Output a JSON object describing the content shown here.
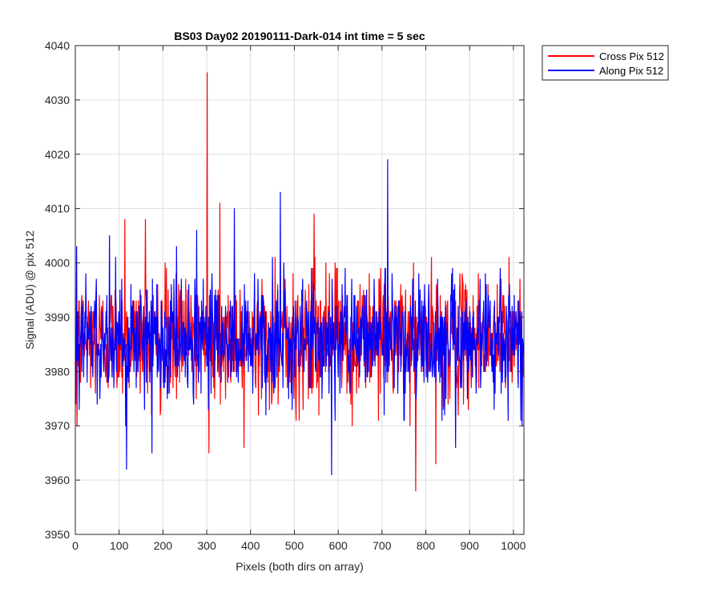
{
  "chart_data": {
    "type": "line",
    "title": "BS03 Day02 20190111-Dark-014 int time = 5 sec",
    "xlabel": "Pixels (both dirs on array)",
    "ylabel": "Signal (ADU) @ pix 512",
    "xlim": [
      0,
      1024
    ],
    "ylim": [
      3950,
      4040
    ],
    "xticks": [
      0,
      100,
      200,
      300,
      400,
      500,
      600,
      700,
      800,
      900,
      1000
    ],
    "yticks": [
      3950,
      3960,
      3970,
      3980,
      3990,
      4000,
      4010,
      4020,
      4030,
      4040
    ],
    "grid": true,
    "legend_position": "outside top-right",
    "n_points": 1024,
    "baseline": 3986,
    "typical_range": [
      3970,
      4003
    ],
    "series": [
      {
        "name": "Cross Pix 512",
        "color": "#ff0000",
        "notable_points": [
          [
            0,
            3981
          ],
          [
            4,
            3970
          ],
          [
            113,
            4008
          ],
          [
            160,
            4008
          ],
          [
            301,
            4035
          ],
          [
            305,
            3965
          ],
          [
            330,
            4011
          ],
          [
            385,
            3966
          ],
          [
            545,
            4009
          ],
          [
            777,
            3958
          ],
          [
            823,
            3963
          ],
          [
            990,
            4001
          ]
        ]
      },
      {
        "name": "Along Pix 512",
        "color": "#0000ff",
        "notable_points": [
          [
            3,
            4003
          ],
          [
            78,
            4005
          ],
          [
            117,
            3962
          ],
          [
            175,
            3965
          ],
          [
            277,
            4006
          ],
          [
            363,
            4010
          ],
          [
            468,
            4013
          ],
          [
            585,
            3961
          ],
          [
            713,
            4019
          ],
          [
            868,
            3966
          ],
          [
            1020,
            3970
          ]
        ]
      }
    ]
  }
}
